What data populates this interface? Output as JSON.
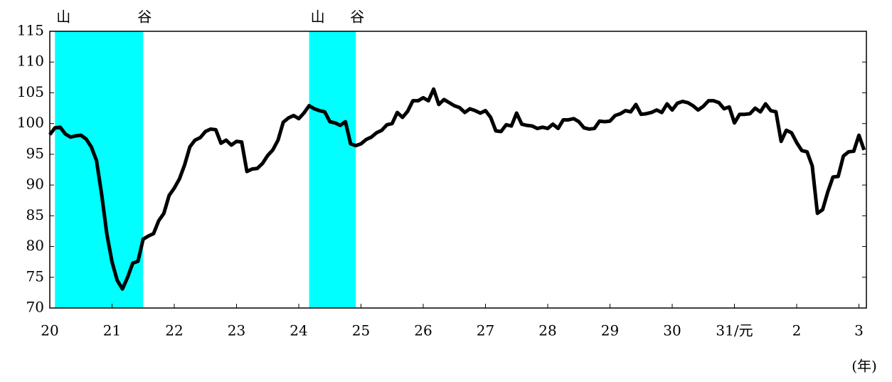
{
  "chart_data": {
    "type": "line",
    "x_unit_label": "(年)",
    "xlim": [
      20,
      33.12
    ],
    "ylim": [
      70,
      115
    ],
    "yticks": [
      70,
      75,
      80,
      85,
      90,
      95,
      100,
      105,
      110,
      115
    ],
    "xticks": [
      20,
      21,
      22,
      23,
      24,
      25,
      26,
      27,
      28,
      29,
      30,
      {
        "value": 31,
        "label": "31/元"
      },
      {
        "value": 32,
        "label": "2"
      },
      {
        "value": 33,
        "label": "3"
      }
    ],
    "shaded_periods": [
      {
        "start": 20.083,
        "end": 21.5,
        "start_label": "山",
        "end_label": "谷"
      },
      {
        "start": 24.167,
        "end": 24.917,
        "start_label": "山",
        "end_label": "谷"
      }
    ],
    "shade_color": "#00ffff",
    "x": [
      20.0,
      20.083,
      20.167,
      20.25,
      20.333,
      20.417,
      20.5,
      20.583,
      20.667,
      20.75,
      20.833,
      20.917,
      21.0,
      21.083,
      21.167,
      21.25,
      21.333,
      21.417,
      21.5,
      21.583,
      21.667,
      21.75,
      21.833,
      21.917,
      22.0,
      22.083,
      22.167,
      22.25,
      22.333,
      22.417,
      22.5,
      22.583,
      22.667,
      22.75,
      22.833,
      22.917,
      23.0,
      23.083,
      23.167,
      23.25,
      23.333,
      23.417,
      23.5,
      23.583,
      23.667,
      23.75,
      23.833,
      23.917,
      24.0,
      24.083,
      24.167,
      24.25,
      24.333,
      24.417,
      24.5,
      24.583,
      24.667,
      24.75,
      24.833,
      24.917,
      25.0,
      25.083,
      25.167,
      25.25,
      25.333,
      25.417,
      25.5,
      25.583,
      25.667,
      25.75,
      25.833,
      25.917,
      26.0,
      26.083,
      26.167,
      26.25,
      26.333,
      26.417,
      26.5,
      26.583,
      26.667,
      26.75,
      26.833,
      26.917,
      27.0,
      27.083,
      27.167,
      27.25,
      27.333,
      27.417,
      27.5,
      27.583,
      27.667,
      27.75,
      27.833,
      27.917,
      28.0,
      28.083,
      28.167,
      28.25,
      28.333,
      28.417,
      28.5,
      28.583,
      28.667,
      28.75,
      28.833,
      28.917,
      29.0,
      29.083,
      29.167,
      29.25,
      29.333,
      29.417,
      29.5,
      29.583,
      29.667,
      29.75,
      29.833,
      29.917,
      30.0,
      30.083,
      30.167,
      30.25,
      30.333,
      30.417,
      30.5,
      30.583,
      30.667,
      30.75,
      30.833,
      30.917,
      31.0,
      31.083,
      31.167,
      31.25,
      31.333,
      31.417,
      31.5,
      31.583,
      31.667,
      31.75,
      31.833,
      31.917,
      32.0,
      32.083,
      32.167,
      32.25,
      32.333,
      32.417,
      32.5,
      32.583,
      32.667,
      32.75,
      32.833,
      32.917,
      33.0,
      33.083
    ],
    "series": [
      {
        "color": "#000000",
        "values": [
          98.2,
          99.3,
          99.4,
          98.3,
          97.8,
          98.0,
          98.1,
          97.5,
          96.2,
          94.0,
          88.5,
          82.0,
          77.5,
          74.5,
          73.1,
          75.0,
          77.3,
          77.6,
          81.2,
          81.7,
          82.1,
          84.2,
          85.4,
          88.3,
          89.5,
          91.0,
          93.3,
          96.2,
          97.3,
          97.7,
          98.7,
          99.1,
          99.0,
          96.8,
          97.3,
          96.5,
          97.1,
          97.0,
          92.2,
          92.6,
          92.7,
          93.5,
          94.8,
          95.7,
          97.3,
          100.2,
          100.9,
          101.3,
          100.8,
          101.7,
          102.9,
          102.4,
          102.1,
          101.9,
          100.3,
          100.1,
          99.7,
          100.3,
          96.7,
          96.4,
          96.7,
          97.4,
          97.8,
          98.5,
          98.9,
          99.8,
          100.0,
          101.8,
          101.0,
          102.0,
          103.7,
          103.7,
          104.2,
          103.7,
          105.6,
          103.1,
          103.9,
          103.4,
          102.9,
          102.6,
          101.8,
          102.4,
          102.1,
          101.7,
          102.1,
          101.0,
          98.8,
          98.7,
          99.8,
          99.6,
          101.7,
          99.9,
          99.7,
          99.6,
          99.2,
          99.4,
          99.2,
          99.9,
          99.2,
          100.6,
          100.6,
          100.8,
          100.3,
          99.3,
          99.1,
          99.2,
          100.4,
          100.3,
          100.4,
          101.3,
          101.6,
          102.1,
          101.9,
          103.1,
          101.5,
          101.6,
          101.8,
          102.2,
          101.8,
          103.2,
          102.2,
          103.3,
          103.6,
          103.4,
          102.9,
          102.2,
          102.8,
          103.7,
          103.7,
          103.4,
          102.4,
          102.7,
          100.1,
          101.5,
          101.5,
          101.6,
          102.5,
          101.9,
          103.2,
          102.1,
          101.9,
          97.1,
          98.9,
          98.5,
          96.9,
          95.6,
          95.4,
          93.1,
          85.4,
          86.0,
          88.9,
          91.3,
          91.4,
          94.7,
          95.4,
          95.5,
          98.1,
          95.7
        ]
      }
    ]
  }
}
